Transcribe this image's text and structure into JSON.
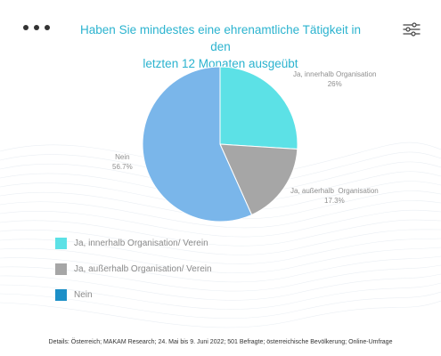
{
  "header": {
    "menu_icon": "more-horizontal-icon",
    "settings_icon": "sliders-icon",
    "title_line1": "Haben Sie mindestes eine ehrenamtliche Tätigkeit in den",
    "title_line2": "letzten 12 Monaten ausgeübt"
  },
  "colors": {
    "title": "#2bb3cf",
    "slice_innerhalb": "#5ce1e6",
    "slice_ausserhalb": "#a6a6a6",
    "slice_nein": "#7ab6ea",
    "legend_nein": "#1c8fc7"
  },
  "chart_data": {
    "type": "pie",
    "title": "Haben Sie mindestes eine ehrenamtliche Tätigkeit in den letzten 12 Monaten ausgeübt",
    "slices": [
      {
        "name": "Ja, innerhalb Organisation",
        "value": 26,
        "value_label": "26%",
        "color": "#5ce1e6"
      },
      {
        "name": "Ja, außerhalb  Organisation",
        "value": 17.3,
        "value_label": "17.3%",
        "color": "#a6a6a6"
      },
      {
        "name": "Nein",
        "value": 56.7,
        "value_label": "56.7%",
        "color": "#7ab6ea"
      }
    ],
    "legend": [
      {
        "label": "Ja, innerhalb Organisation/ Verein",
        "color": "#5ce1e6"
      },
      {
        "label": "Ja, außerhalb Organisation/ Verein",
        "color": "#a6a6a6"
      },
      {
        "label": "Nein",
        "color": "#1c8fc7"
      }
    ],
    "legend_position": "bottom-left"
  },
  "footer": {
    "details": "Details: Österreich; MAKAM Research; 24. Mai bis 9. Juni 2022; 501 Befragte; österreichische Bevölkerung; Online-Umfrage"
  }
}
